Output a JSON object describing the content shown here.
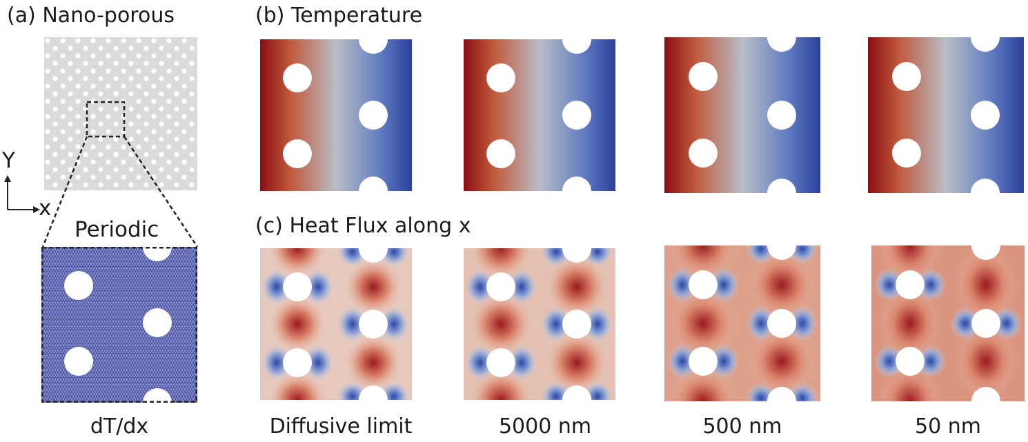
{
  "figure": {
    "panel_a": {
      "title": "(a) Nano-porous",
      "axis_y": "Y",
      "axis_x": "x",
      "zoom_label": "Periodic",
      "bottom_label": "dT/dx"
    },
    "panel_b": {
      "title": "(b) Temperature"
    },
    "panel_c": {
      "title": "(c) Heat Flux along x"
    },
    "columns": [
      "Diffusive limit",
      "5000 nm",
      "500 nm",
      "50 nm"
    ],
    "colors": {
      "hot": "#8b0d14",
      "mid": "#b9bdc6",
      "cold": "#2b3f9a",
      "porous_bg": "#d9dbda",
      "mesh": "#4a55a8"
    }
  }
}
